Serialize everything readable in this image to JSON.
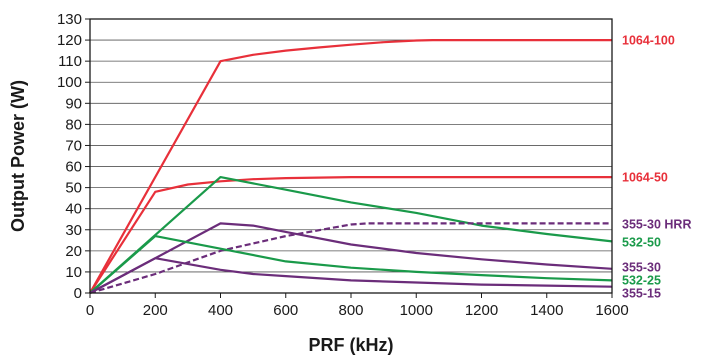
{
  "chart_data": {
    "type": "line",
    "title": "",
    "xlabel": "PRF (kHz)",
    "ylabel": "Output Power (W)",
    "xlim": [
      0,
      1600
    ],
    "ylim": [
      0,
      130
    ],
    "x_ticks": [
      0,
      200,
      400,
      600,
      800,
      1000,
      1200,
      1400,
      1600
    ],
    "y_ticks": [
      0,
      10,
      20,
      30,
      40,
      50,
      60,
      70,
      80,
      90,
      100,
      110,
      120,
      130
    ],
    "grid": "horizontal",
    "legend": "none (series labels at right end of each line)",
    "series": [
      {
        "name": "1064-100",
        "color": "#e8303a",
        "dashed": false,
        "x": [
          0,
          400,
          500,
          600,
          700,
          800,
          900,
          1000,
          1050,
          1100,
          1200,
          1400,
          1600
        ],
        "y": [
          0,
          110,
          113,
          115,
          116.5,
          117.8,
          119,
          119.8,
          120,
          120,
          120,
          120,
          120
        ]
      },
      {
        "name": "1064-50",
        "color": "#e8303a",
        "dashed": false,
        "x": [
          0,
          200,
          300,
          400,
          500,
          600,
          800,
          1000,
          1200,
          1400,
          1600
        ],
        "y": [
          0,
          48,
          51.5,
          53,
          54,
          54.5,
          55,
          55,
          55,
          55,
          55
        ]
      },
      {
        "name": "532-50",
        "color": "#1a9a4a",
        "dashed": false,
        "x": [
          0,
          400,
          600,
          800,
          1000,
          1200,
          1400,
          1600
        ],
        "y": [
          0,
          55,
          49,
          43,
          38,
          32,
          28,
          24.5
        ]
      },
      {
        "name": "355-30 HRR",
        "color": "#6b2d7a",
        "dashed": true,
        "x": [
          0,
          200,
          400,
          600,
          800,
          850,
          900,
          1000,
          1200,
          1400,
          1600
        ],
        "y": [
          0,
          9,
          20,
          27,
          32.5,
          33,
          33,
          33,
          33,
          33,
          33
        ]
      },
      {
        "name": "355-30",
        "color": "#6b2d7a",
        "dashed": false,
        "x": [
          0,
          400,
          500,
          600,
          800,
          1000,
          1200,
          1400,
          1600
        ],
        "y": [
          0,
          33,
          32,
          29,
          23,
          19,
          16,
          13.5,
          11.5
        ]
      },
      {
        "name": "532-25",
        "color": "#1a9a4a",
        "dashed": false,
        "x": [
          0,
          200,
          400,
          600,
          800,
          1000,
          1200,
          1400,
          1600
        ],
        "y": [
          0,
          27,
          21,
          15,
          12,
          10,
          8.5,
          7,
          6
        ]
      },
      {
        "name": "355-15",
        "color": "#6b2d7a",
        "dashed": false,
        "x": [
          0,
          200,
          400,
          500,
          600,
          800,
          1000,
          1200,
          1400,
          1600
        ],
        "y": [
          0,
          16.5,
          11,
          9,
          8,
          6,
          5,
          4,
          3.5,
          3
        ]
      }
    ]
  }
}
